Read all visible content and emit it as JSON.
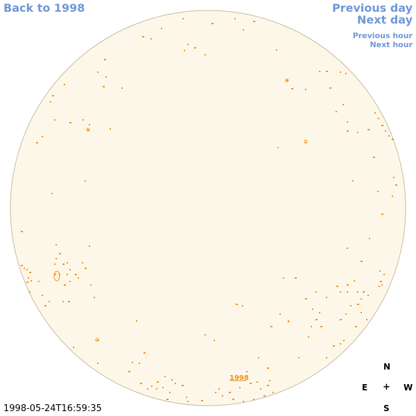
{
  "nav": {
    "back_label": "Back to 1998",
    "prev_day_label": "Previous day",
    "next_day_label": "Next day",
    "prev_hour_label": "Previous hour",
    "next_hour_label": "Next hour"
  },
  "map": {
    "year_label": "1998",
    "timestamp": "1998-05-24T16:59:35",
    "compass": {
      "north": "N",
      "east": "E",
      "center": "+",
      "west": "W",
      "south": "S"
    }
  },
  "colors": {
    "disk_fill": "#fdf7e9",
    "disk_border": "#c9b9a0",
    "feature": "#f0921a",
    "nav_link": "#6f98d8"
  }
}
